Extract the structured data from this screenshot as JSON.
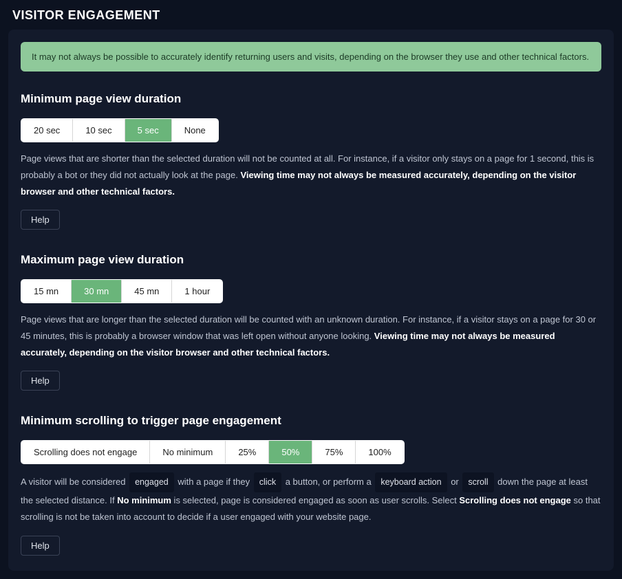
{
  "pageTitle": "VISITOR ENGAGEMENT",
  "notice": "It may not always be possible to accurately identify returning users and visits, depending on the browser they use and other technical factors.",
  "sections": {
    "minDuration": {
      "title": "Minimum page view duration",
      "options": [
        "20 sec",
        "10 sec",
        "5 sec",
        "None"
      ],
      "selectedIndex": 2,
      "desc_pre": "Page views that are shorter than the selected duration will not be counted at all. For instance, if a visitor only stays on a page for 1 second, this is probably a bot or they did not actually look at the page. ",
      "desc_bold": "Viewing time may not always be measured accurately, depending on the visitor browser and other technical factors.",
      "helpLabel": "Help"
    },
    "maxDuration": {
      "title": "Maximum page view duration",
      "options": [
        "15 mn",
        "30 mn",
        "45 mn",
        "1 hour"
      ],
      "selectedIndex": 1,
      "desc_pre": "Page views that are longer than the selected duration will be counted with an unknown duration. For instance, if a visitor stays on a page for 30 or 45 minutes, this is probably a browser window that was left open without anyone looking. ",
      "desc_bold": "Viewing time may not always be measured accurately, depending on the visitor browser and other technical factors.",
      "helpLabel": "Help"
    },
    "scrollEngage": {
      "title": "Minimum scrolling to trigger page engagement",
      "options": [
        "Scrolling does not engage",
        "No minimum",
        "25%",
        "50%",
        "75%",
        "100%"
      ],
      "selectedIndex": 3,
      "desc_p1": "A visitor will be considered ",
      "kbd_engaged": "engaged",
      "desc_p2": " with a page if they ",
      "kbd_click": "click",
      "desc_p3": " a button, or perform a ",
      "kbd_keyboard": "keyboard action",
      "desc_p4": " or ",
      "kbd_scroll": "scroll",
      "desc_p5": " down the page at least the selected distance. If ",
      "strong_nomin": "No minimum",
      "desc_p6": " is selected, page is considered engaged as soon as user scrolls. Select ",
      "strong_noscroll": "Scrolling does not engage",
      "desc_p7": " so that scrolling is not be taken into account to decide if a user engaged with your website page.",
      "helpLabel": "Help"
    }
  }
}
